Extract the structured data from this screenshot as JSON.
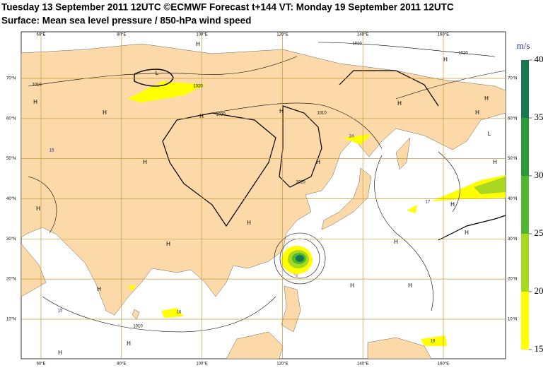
{
  "header": {
    "title": "Tuesday 13 September 2011 12UTC ©ECMWF Forecast t+144 VT: Monday 19 September 2011 12UTC",
    "subtitle": "Surface: Mean sea level pressure / 850-hPa wind speed"
  },
  "map": {
    "lon_ticks": [
      {
        "value": 60,
        "label": "60°E"
      },
      {
        "value": 80,
        "label": "80°E"
      },
      {
        "value": 100,
        "label": "100°E"
      },
      {
        "value": 120,
        "label": "120°E"
      },
      {
        "value": 140,
        "label": "140°E"
      },
      {
        "value": 160,
        "label": "160°E"
      }
    ],
    "lat_ticks": [
      {
        "value": 70,
        "label": "70°N"
      },
      {
        "value": 60,
        "label": "60°N"
      },
      {
        "value": 50,
        "label": "50°N"
      },
      {
        "value": 40,
        "label": "40°N"
      },
      {
        "value": 30,
        "label": "30°N"
      },
      {
        "value": 20,
        "label": "20°N"
      },
      {
        "value": 10,
        "label": "10°N"
      }
    ],
    "centers": [
      "H",
      "H",
      "H",
      "L",
      "H",
      "H",
      "H",
      "H",
      "H",
      "H",
      "H",
      "H",
      "H",
      "H",
      "H",
      "H",
      "H",
      "L",
      "H",
      "H",
      "H",
      "H",
      "H",
      "H",
      "H"
    ],
    "isobar_labels": [
      "1010",
      "1020",
      "1010",
      "1020",
      "1020",
      "1010",
      "1020",
      "1010"
    ],
    "wind_maxima": [
      "15",
      "24",
      "17",
      "16",
      "18",
      "15"
    ]
  },
  "colorbar": {
    "unit": "m/s",
    "ticks": [
      15,
      20,
      25,
      30,
      35,
      40
    ],
    "colors": [
      "#ffff00",
      "#a8d820",
      "#50b830",
      "#2a9a3a",
      "#1a7850"
    ]
  }
}
